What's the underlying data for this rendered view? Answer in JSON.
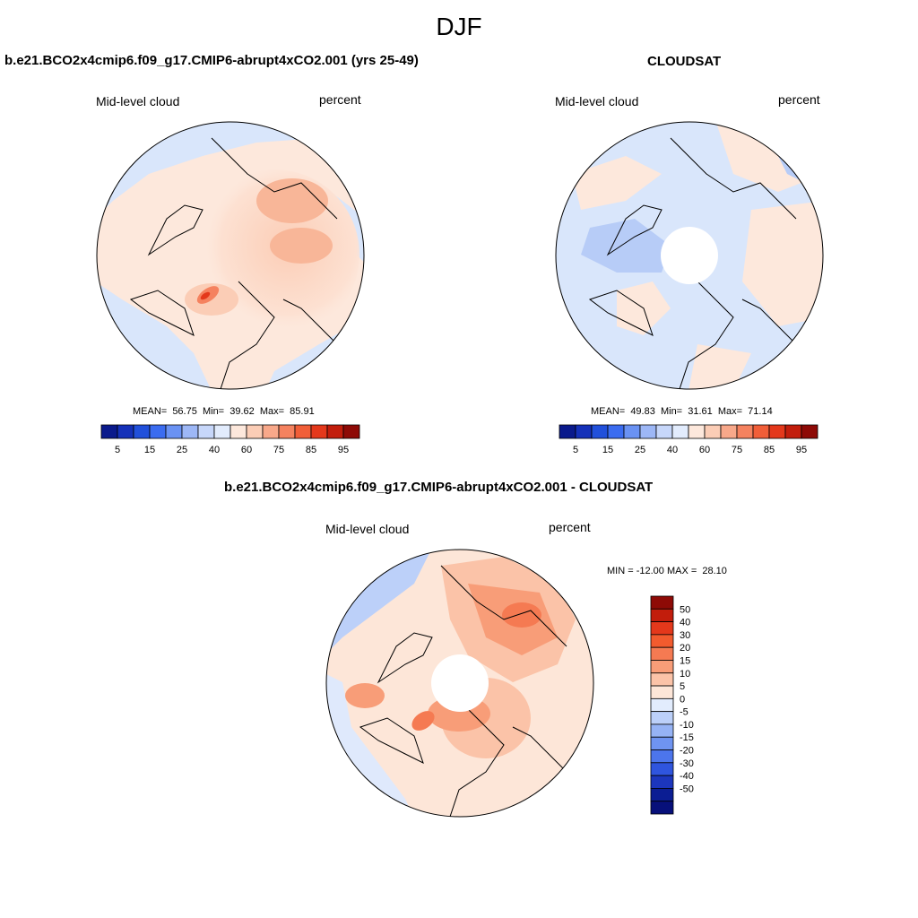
{
  "title": "DJF",
  "panels": [
    {
      "id": "model",
      "title": "b.e21.BCO2x4cmip6.f09_g17.CMIP6-abrupt4xCO2.001 (yrs 25-49)",
      "left_label": "Mid-level cloud",
      "right_label": "percent",
      "stats": "MEAN=  56.75  Min=  39.62  Max=  85.91",
      "colorbar": {
        "colors": [
          "#0a1a8c",
          "#1531b9",
          "#2150db",
          "#3b6cf0",
          "#6a92f3",
          "#9db7f6",
          "#c7d7fa",
          "#e2ecfd",
          "#fde8dc",
          "#fbcdb6",
          "#f8a88a",
          "#f5825f",
          "#f15e38",
          "#e4381b",
          "#c21d0c",
          "#8e0a06"
        ],
        "tick_labels": [
          "5",
          "15",
          "25",
          "40",
          "60",
          "75",
          "85",
          "95"
        ]
      },
      "chart_data": {
        "type": "heatmap",
        "projection": "north polar stereographic",
        "variable": "Mid-level cloud",
        "units": "percent",
        "mean": 56.75,
        "min": 39.62,
        "max": 85.91
      }
    },
    {
      "id": "obs",
      "title": "CLOUDSAT",
      "left_label": "Mid-level cloud",
      "right_label": "percent",
      "stats": "MEAN=  49.83  Min=  31.61  Max=  71.14",
      "colorbar": {
        "colors": [
          "#0a1a8c",
          "#1531b9",
          "#2150db",
          "#3b6cf0",
          "#6a92f3",
          "#9db7f6",
          "#c7d7fa",
          "#e2ecfd",
          "#fde8dc",
          "#fbcdb6",
          "#f8a88a",
          "#f5825f",
          "#f15e38",
          "#e4381b",
          "#c21d0c",
          "#8e0a06"
        ],
        "tick_labels": [
          "5",
          "15",
          "25",
          "40",
          "60",
          "75",
          "85",
          "95"
        ]
      },
      "chart_data": {
        "type": "heatmap",
        "projection": "north polar stereographic",
        "variable": "Mid-level cloud",
        "units": "percent",
        "mean": 49.83,
        "min": 31.61,
        "max": 71.14,
        "missing_polar_cap": true
      }
    },
    {
      "id": "diff",
      "title": "b.e21.BCO2x4cmip6.f09_g17.CMIP6-abrupt4xCO2.001 - CLOUDSAT",
      "left_label": "Mid-level cloud",
      "right_label": "percent",
      "stats": "MIN = -12.00 MAX =  28.10",
      "colorbar": {
        "colors": [
          "#8e0a06",
          "#c21d0c",
          "#e4381b",
          "#f25b2e",
          "#f57a52",
          "#f89d78",
          "#fbc3a8",
          "#fde6d8",
          "#e2ecfd",
          "#bcd0f9",
          "#96b3f5",
          "#6f94f1",
          "#4c75ec",
          "#2f55de",
          "#1c36bd",
          "#0b1d93",
          "#07107a"
        ],
        "tick_labels": [
          "50",
          "40",
          "30",
          "20",
          "15",
          "10",
          "5",
          "0",
          "-5",
          "-10",
          "-15",
          "-20",
          "-30",
          "-40",
          "-50"
        ]
      },
      "chart_data": {
        "type": "heatmap",
        "projection": "north polar stereographic",
        "variable": "Mid-level cloud",
        "units": "percent",
        "min": -12.0,
        "max": 28.1,
        "missing_polar_cap": true
      }
    }
  ]
}
